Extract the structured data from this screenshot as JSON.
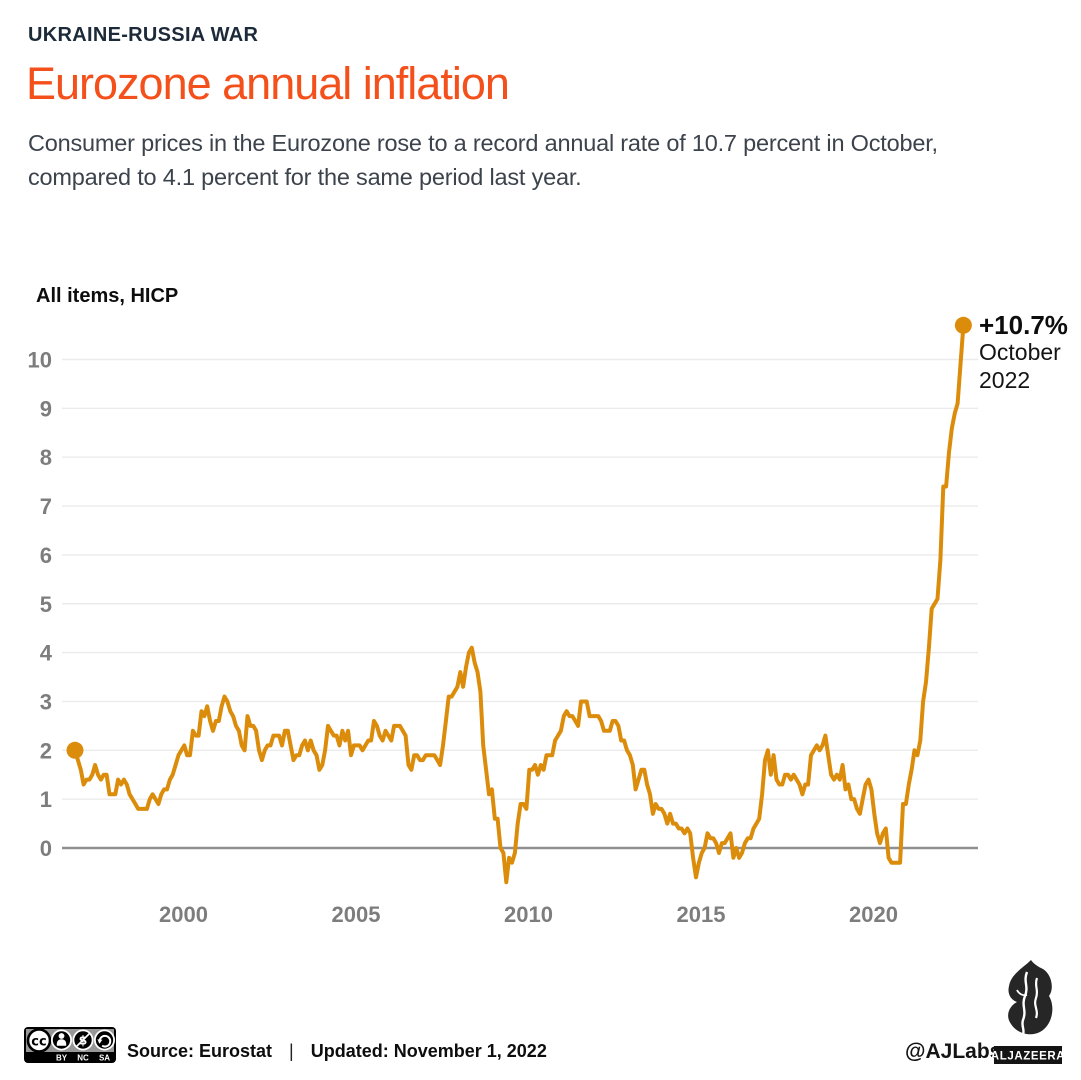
{
  "header": {
    "kicker": "UKRAINE-RUSSIA WAR",
    "title": "Eurozone annual inflation",
    "subtitle": "Consumer prices in the Eurozone rose to a record annual rate of 10.7 percent in October, compared to 4.1 percent for the same period last year."
  },
  "colors": {
    "title_orange": "#f4501b",
    "kicker_navy": "#1c2a39",
    "subtitle_gray": "#3c434c",
    "line_amber": "#dc8c0b",
    "tick_gray": "#7d7d7d",
    "gridline": "#ebebeb",
    "zero_line": "#8f8f8f"
  },
  "chart_data": {
    "type": "line",
    "title": "All items, HICP",
    "series_name": "Eurozone annual inflation rate, percent",
    "frequency": "monthly",
    "x_start": "1997-01",
    "x_end": "2022-10",
    "x_ticks": [
      2000,
      2005,
      2010,
      2015,
      2020
    ],
    "y_ticks": [
      0,
      1,
      2,
      3,
      4,
      5,
      6,
      7,
      8,
      9,
      10
    ],
    "ylim": [
      -1,
      11.2
    ],
    "xlim_years": [
      1996.6,
      2023.3
    ],
    "grid": "horizontal",
    "legend": "none",
    "line_color": "#dc8c0b",
    "values": [
      2.0,
      1.8,
      1.6,
      1.3,
      1.4,
      1.4,
      1.5,
      1.7,
      1.5,
      1.4,
      1.5,
      1.5,
      1.1,
      1.1,
      1.1,
      1.4,
      1.3,
      1.4,
      1.3,
      1.1,
      1.0,
      0.9,
      0.8,
      0.8,
      0.8,
      0.8,
      1.0,
      1.1,
      1.0,
      0.9,
      1.1,
      1.2,
      1.2,
      1.4,
      1.5,
      1.7,
      1.9,
      2.0,
      2.1,
      1.9,
      1.9,
      2.4,
      2.3,
      2.3,
      2.8,
      2.7,
      2.9,
      2.6,
      2.4,
      2.6,
      2.6,
      2.9,
      3.1,
      3.0,
      2.8,
      2.7,
      2.5,
      2.4,
      2.1,
      2.0,
      2.7,
      2.5,
      2.5,
      2.4,
      2.0,
      1.8,
      2.0,
      2.1,
      2.1,
      2.3,
      2.3,
      2.3,
      2.1,
      2.4,
      2.4,
      2.1,
      1.8,
      1.9,
      1.9,
      2.1,
      2.2,
      2.0,
      2.2,
      2.0,
      1.9,
      1.6,
      1.7,
      2.0,
      2.5,
      2.4,
      2.3,
      2.3,
      2.1,
      2.4,
      2.2,
      2.4,
      1.9,
      2.1,
      2.1,
      2.1,
      2.0,
      2.1,
      2.2,
      2.2,
      2.6,
      2.5,
      2.3,
      2.2,
      2.4,
      2.3,
      2.2,
      2.5,
      2.5,
      2.5,
      2.4,
      2.3,
      1.7,
      1.6,
      1.9,
      1.9,
      1.8,
      1.8,
      1.9,
      1.9,
      1.9,
      1.9,
      1.8,
      1.7,
      2.1,
      2.6,
      3.1,
      3.1,
      3.2,
      3.3,
      3.6,
      3.3,
      3.7,
      4.0,
      4.1,
      3.8,
      3.6,
      3.2,
      2.1,
      1.6,
      1.1,
      1.2,
      0.6,
      0.6,
      0.0,
      -0.1,
      -0.7,
      -0.2,
      -0.3,
      -0.1,
      0.5,
      0.9,
      0.9,
      0.8,
      1.6,
      1.6,
      1.7,
      1.5,
      1.7,
      1.6,
      1.9,
      1.9,
      1.9,
      2.2,
      2.3,
      2.4,
      2.7,
      2.8,
      2.7,
      2.7,
      2.6,
      2.5,
      3.0,
      3.0,
      3.0,
      2.7,
      2.7,
      2.7,
      2.7,
      2.6,
      2.4,
      2.4,
      2.4,
      2.6,
      2.6,
      2.5,
      2.2,
      2.2,
      2.0,
      1.9,
      1.7,
      1.2,
      1.4,
      1.6,
      1.6,
      1.3,
      1.1,
      0.7,
      0.9,
      0.8,
      0.8,
      0.7,
      0.5,
      0.7,
      0.5,
      0.5,
      0.4,
      0.4,
      0.3,
      0.4,
      0.3,
      -0.2,
      -0.6,
      -0.3,
      -0.1,
      0.0,
      0.3,
      0.2,
      0.2,
      0.1,
      -0.1,
      0.1,
      0.1,
      0.2,
      0.3,
      -0.2,
      0.0,
      -0.2,
      -0.1,
      0.1,
      0.2,
      0.2,
      0.4,
      0.5,
      0.6,
      1.1,
      1.8,
      2.0,
      1.5,
      1.9,
      1.4,
      1.3,
      1.3,
      1.5,
      1.5,
      1.4,
      1.5,
      1.4,
      1.3,
      1.1,
      1.3,
      1.3,
      1.9,
      2.0,
      2.1,
      2.0,
      2.1,
      2.3,
      1.9,
      1.5,
      1.4,
      1.5,
      1.4,
      1.7,
      1.2,
      1.3,
      1.0,
      1.0,
      0.8,
      0.7,
      1.0,
      1.3,
      1.4,
      1.2,
      0.7,
      0.3,
      0.1,
      0.3,
      0.4,
      -0.2,
      -0.3,
      -0.3,
      -0.3,
      -0.3,
      0.9,
      0.9,
      1.3,
      1.6,
      2.0,
      1.9,
      2.2,
      3.0,
      3.4,
      4.1,
      4.9,
      5.0,
      5.1,
      5.9,
      7.4,
      7.4,
      8.1,
      8.6,
      8.9,
      9.1,
      9.9,
      10.7
    ],
    "startpoint": {
      "value": 2.0,
      "marker": "dot"
    },
    "endpoint": {
      "value": 10.7,
      "label": "+10.7%",
      "sub1": "October",
      "sub2": "2022",
      "marker": "dot"
    }
  },
  "footer": {
    "license": {
      "name": "CC BY-NC-SA",
      "cc": "cc",
      "labels": [
        "BY",
        "NC",
        "SA"
      ]
    },
    "source": "Source: Eurostat",
    "separator": "|",
    "updated": "Updated: November 1, 2022",
    "credit": "@AJLabs",
    "brand": "ALJAZEERA"
  }
}
